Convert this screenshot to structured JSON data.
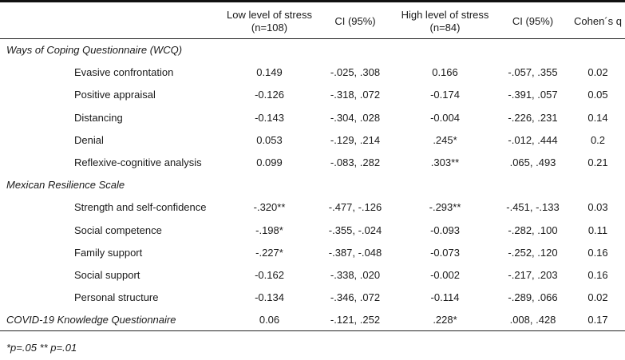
{
  "table": {
    "headers": [
      "",
      "Low level of stress\n(n=108)",
      "CI (95%)",
      "High level of stress\n(n=84)",
      "CI (95%)",
      "Cohen´s q"
    ],
    "rows": [
      {
        "type": "section",
        "label": "Ways of Coping Questionnaire (WCQ)"
      },
      {
        "type": "item",
        "label": "Evasive confrontation",
        "low": "0.149",
        "ci_low": "-.025, .308",
        "high": "0.166",
        "ci_high": "-.057, .355",
        "q": "0.02"
      },
      {
        "type": "item",
        "label": "Positive appraisal",
        "low": "-0.126",
        "ci_low": "-.318, .072",
        "high": "-0.174",
        "ci_high": "-.391, .057",
        "q": "0.05"
      },
      {
        "type": "item",
        "label": "Distancing",
        "low": "-0.143",
        "ci_low": "-.304, .028",
        "high": "-0.004",
        "ci_high": "-.226, .231",
        "q": "0.14"
      },
      {
        "type": "item",
        "label": "Denial",
        "low": "0.053",
        "ci_low": "-.129, .214",
        "high": ".245*",
        "ci_high": "-.012, .444",
        "q": "0.2"
      },
      {
        "type": "item",
        "label": "Reflexive-cognitive analysis",
        "low": "0.099",
        "ci_low": "-.083, .282",
        "high": ".303**",
        "ci_high": ".065, .493",
        "q": "0.21"
      },
      {
        "type": "section",
        "label": "Mexican Resilience Scale"
      },
      {
        "type": "item",
        "label": "Strength and self-confidence",
        "low": "-.320**",
        "ci_low": "-.477, -.126",
        "high": "-.293**",
        "ci_high": "-.451, -.133",
        "q": "0.03"
      },
      {
        "type": "item",
        "label": "Social competence",
        "low": "-.198*",
        "ci_low": "-.355, -.024",
        "high": "-0.093",
        "ci_high": "-.282, .100",
        "q": "0.11"
      },
      {
        "type": "item",
        "label": "Family support",
        "low": "-.227*",
        "ci_low": "-.387, -.048",
        "high": "-0.073",
        "ci_high": "-.252, .120",
        "q": "0.16"
      },
      {
        "type": "item",
        "label": "Social support",
        "low": "-0.162",
        "ci_low": "-.338, .020",
        "high": "-0.002",
        "ci_high": "-.217, .203",
        "q": "0.16"
      },
      {
        "type": "item",
        "label": "Personal structure",
        "low": "-0.134",
        "ci_low": "-.346, .072",
        "high": "-0.114",
        "ci_high": "-.289, .066",
        "q": "0.02"
      },
      {
        "type": "section-values",
        "label": "COVID-19 Knowledge Questionnaire",
        "low": "0.06",
        "ci_low": "-.121, .252",
        "high": ".228*",
        "ci_high": ".008, .428",
        "q": "0.17"
      }
    ]
  },
  "footnote": "*p=.05 ** p=.01"
}
